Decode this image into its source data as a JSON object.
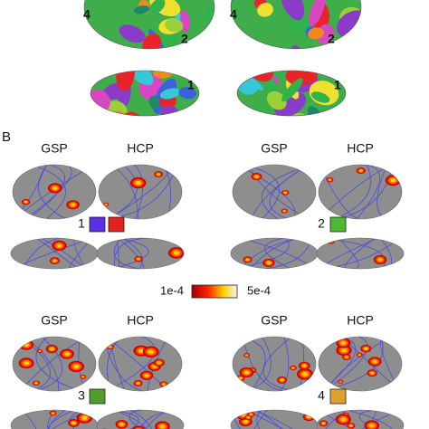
{
  "panel_a": {
    "lateral_labels": [
      "4",
      "2"
    ],
    "ventral_label": "1"
  },
  "panel_b": {
    "label": "B",
    "groups": [
      {
        "datasets": [
          "GSP",
          "HCP"
        ],
        "network": "1",
        "swatches": [
          "#5a2fe6",
          "#e3201b"
        ]
      },
      {
        "datasets": [
          "GSP",
          "HCP"
        ],
        "network": "2",
        "swatches": [
          "#4fb832"
        ]
      },
      {
        "datasets": [
          "GSP",
          "HCP"
        ],
        "network": "3",
        "swatches": [
          "#4f9e2a"
        ]
      },
      {
        "datasets": [
          "GSP",
          "HCP"
        ],
        "network": "4",
        "swatches": [
          "#e0a030"
        ]
      }
    ],
    "colorbar": {
      "min_label": "1e-4",
      "max_label": "5e-4"
    }
  }
}
